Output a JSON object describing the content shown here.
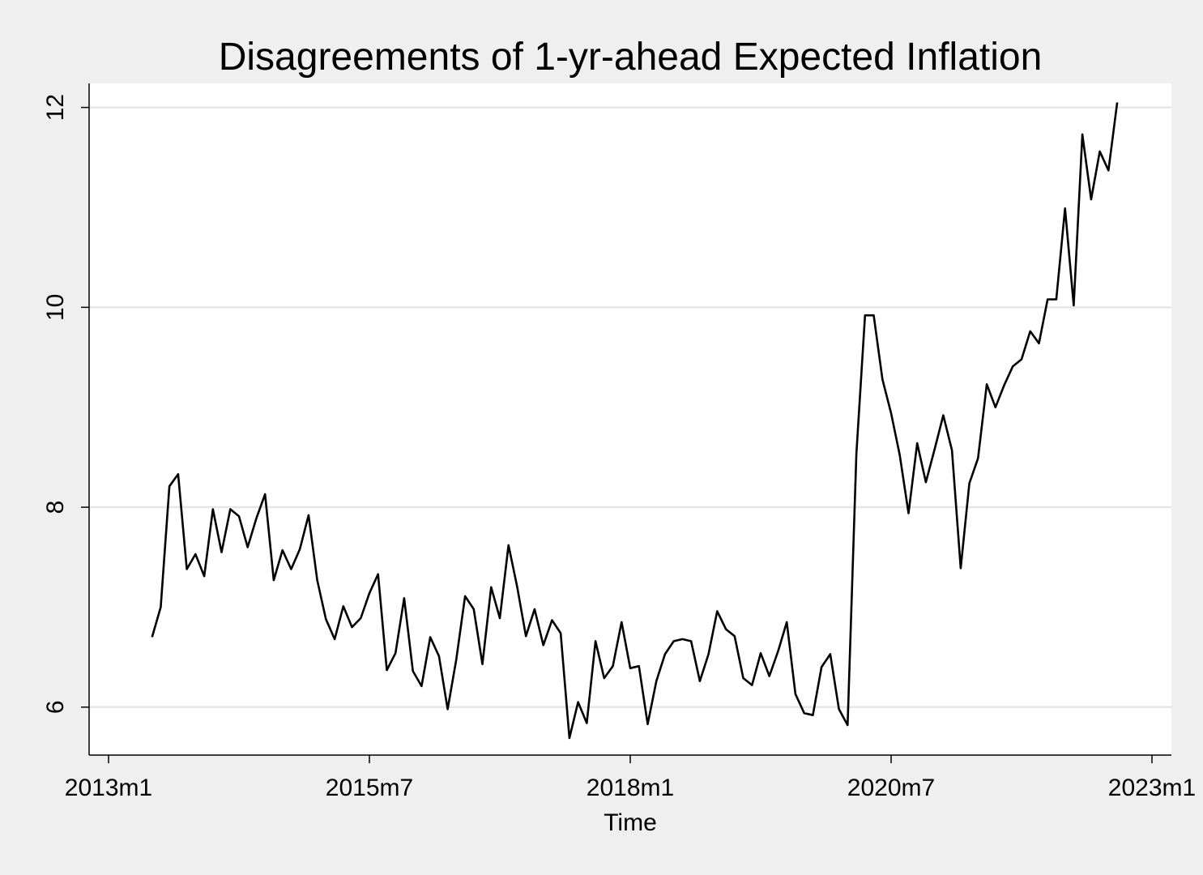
{
  "chart_data": {
    "type": "line",
    "title": "Disagreements of 1-yr-ahead Expected Inflation",
    "xlabel": "Time",
    "ylabel": "",
    "x_ticks": [
      "2013m1",
      "2015m7",
      "2018m1",
      "2020m7",
      "2023m1"
    ],
    "y_ticks": [
      "6",
      "8",
      "10",
      "12"
    ],
    "ylim": [
      5.52,
      12.24
    ],
    "grid": true,
    "line_color": "#000000",
    "x": [
      "2013m6",
      "2013m7",
      "2013m8",
      "2013m9",
      "2013m10",
      "2013m11",
      "2013m12",
      "2014m1",
      "2014m2",
      "2014m3",
      "2014m4",
      "2014m5",
      "2014m6",
      "2014m7",
      "2014m8",
      "2014m9",
      "2014m10",
      "2014m11",
      "2014m12",
      "2015m1",
      "2015m2",
      "2015m3",
      "2015m4",
      "2015m5",
      "2015m6",
      "2015m7",
      "2015m8",
      "2015m9",
      "2015m10",
      "2015m11",
      "2015m12",
      "2016m1",
      "2016m2",
      "2016m3",
      "2016m4",
      "2016m5",
      "2016m6",
      "2016m7",
      "2016m8",
      "2016m9",
      "2016m10",
      "2016m11",
      "2016m12",
      "2017m1",
      "2017m2",
      "2017m3",
      "2017m4",
      "2017m5",
      "2017m6",
      "2017m7",
      "2017m8",
      "2017m9",
      "2017m10",
      "2017m11",
      "2017m12",
      "2018m1",
      "2018m2",
      "2018m3",
      "2018m4",
      "2018m5",
      "2018m6",
      "2018m7",
      "2018m8",
      "2018m9",
      "2018m10",
      "2018m11",
      "2018m12",
      "2019m1",
      "2019m2",
      "2019m3",
      "2019m4",
      "2019m5",
      "2019m6",
      "2019m7",
      "2019m8",
      "2019m9",
      "2019m10",
      "2019m11",
      "2019m12",
      "2020m1",
      "2020m2",
      "2020m3",
      "2020m4",
      "2020m5",
      "2020m6",
      "2020m7",
      "2020m8",
      "2020m9",
      "2020m10",
      "2020m11",
      "2020m12",
      "2021m1",
      "2021m2",
      "2021m3",
      "2021m4",
      "2021m5",
      "2021m6",
      "2021m7",
      "2021m8",
      "2021m9",
      "2021m10",
      "2021m11",
      "2021m12",
      "2022m1",
      "2022m2",
      "2022m3",
      "2022m4",
      "2022m5",
      "2022m6",
      "2022m7",
      "2022m8",
      "2022m9"
    ],
    "values": [
      6.7,
      7.0,
      8.21,
      8.33,
      7.38,
      7.53,
      7.31,
      7.98,
      7.55,
      7.98,
      7.91,
      7.6,
      7.89,
      8.13,
      7.27,
      7.57,
      7.38,
      7.58,
      7.92,
      7.27,
      6.88,
      6.68,
      7.01,
      6.8,
      6.89,
      7.14,
      7.33,
      6.37,
      6.54,
      7.09,
      6.36,
      6.21,
      6.7,
      6.51,
      5.98,
      6.48,
      7.11,
      6.98,
      6.43,
      7.2,
      6.89,
      7.62,
      7.2,
      6.71,
      6.98,
      6.62,
      6.87,
      6.74,
      5.69,
      6.05,
      5.84,
      6.66,
      6.29,
      6.41,
      6.85,
      6.39,
      6.41,
      5.83,
      6.26,
      6.53,
      6.66,
      6.68,
      6.66,
      6.26,
      6.53,
      6.96,
      6.78,
      6.71,
      6.29,
      6.22,
      6.54,
      6.31,
      6.56,
      6.85,
      6.13,
      5.94,
      5.92,
      6.4,
      6.53,
      5.98,
      5.82,
      8.53,
      9.92,
      9.92,
      9.28,
      8.94,
      8.52,
      7.94,
      8.64,
      8.25,
      8.58,
      8.92,
      8.57,
      7.39,
      8.24,
      8.49,
      9.23,
      9.0,
      9.22,
      9.41,
      9.48,
      9.76,
      9.64,
      10.08,
      10.08,
      10.99,
      10.02,
      11.73,
      11.08,
      11.56,
      11.37,
      12.05
    ]
  }
}
